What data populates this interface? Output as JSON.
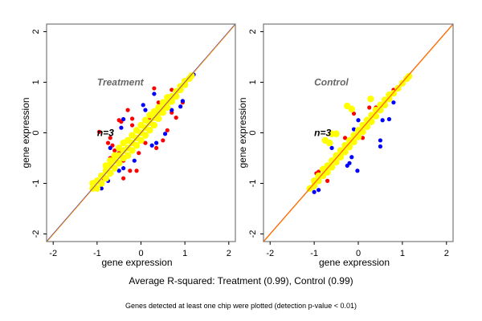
{
  "chart_data": [
    {
      "type": "scatter",
      "title": "Treatment",
      "annotation": "n=3",
      "xlabel": "gene expression",
      "ylabel": "gene expression",
      "xlim": [
        -2.15,
        2.15
      ],
      "ylim": [
        -2.15,
        2.15
      ],
      "xticks": [
        "-2",
        "-1",
        "0",
        "1",
        "2"
      ],
      "yticks": [
        "-2",
        "-1",
        "0",
        "1",
        "2"
      ],
      "grid": false,
      "reference_lines": [
        {
          "slope": 1,
          "intercept": 0,
          "color": "#0000ff"
        },
        {
          "slope": 1,
          "intercept": 0,
          "color": "#ff9900"
        }
      ],
      "series": [
        {
          "color": "#ff0000",
          "points": [
            [
              0.3,
              0.88
            ],
            [
              0.7,
              0.85
            ],
            [
              -0.3,
              0.45
            ],
            [
              -0.2,
              0.28
            ],
            [
              -0.5,
              0.25
            ],
            [
              -0.45,
              0.22
            ],
            [
              -0.95,
              0.02
            ],
            [
              -0.7,
              -0.1
            ],
            [
              -0.75,
              -0.2
            ],
            [
              -0.65,
              -0.25
            ],
            [
              -0.5,
              -0.4
            ],
            [
              -0.4,
              -0.55
            ],
            [
              -0.1,
              -0.75
            ],
            [
              -0.4,
              -0.9
            ],
            [
              -0.25,
              -0.75
            ],
            [
              0.35,
              -0.3
            ],
            [
              0.5,
              -0.15
            ],
            [
              0.6,
              0.05
            ],
            [
              0.8,
              0.3
            ],
            [
              0.95,
              0.6
            ],
            [
              0.7,
              0.4
            ],
            [
              -0.05,
              -0.4
            ],
            [
              0.1,
              -0.2
            ],
            [
              -1.05,
              -1.0
            ],
            [
              -0.85,
              -0.9
            ],
            [
              -0.6,
              -0.35
            ],
            [
              0.2,
              0.3
            ],
            [
              -0.2,
              0.15
            ],
            [
              0.4,
              0.6
            ],
            [
              -0.7,
              -0.5
            ]
          ]
        },
        {
          "color": "#0000ff",
          "points": [
            [
              0.3,
              0.77
            ],
            [
              0.05,
              0.55
            ],
            [
              0.1,
              0.45
            ],
            [
              -0.4,
              0.27
            ],
            [
              -0.45,
              0.1
            ],
            [
              -0.7,
              -0.3
            ],
            [
              -0.4,
              -0.7
            ],
            [
              -0.5,
              -0.75
            ],
            [
              -0.75,
              -0.95
            ],
            [
              0.25,
              -0.25
            ],
            [
              0.35,
              -0.2
            ],
            [
              0.55,
              -0.02
            ],
            [
              0.95,
              0.63
            ],
            [
              0.9,
              0.52
            ],
            [
              0.7,
              0.45
            ],
            [
              1.2,
              1.15
            ],
            [
              -0.15,
              -0.55
            ],
            [
              -0.9,
              -1.1
            ]
          ]
        },
        {
          "color": "#ffff00",
          "points": [
            [
              -1.1,
              -1.1
            ],
            [
              -1.1,
              -1.0
            ],
            [
              -1.0,
              -1.1
            ],
            [
              -1.0,
              -0.95
            ],
            [
              -0.9,
              -1.0
            ],
            [
              -0.9,
              -0.85
            ],
            [
              -0.8,
              -0.9
            ],
            [
              -0.8,
              -0.75
            ],
            [
              -0.8,
              -0.65
            ],
            [
              -0.7,
              -0.8
            ],
            [
              -0.7,
              -0.65
            ],
            [
              -0.7,
              -0.55
            ],
            [
              -0.6,
              -0.7
            ],
            [
              -0.6,
              -0.55
            ],
            [
              -0.6,
              -0.45
            ],
            [
              -0.5,
              -0.6
            ],
            [
              -0.5,
              -0.45
            ],
            [
              -0.5,
              -0.3
            ],
            [
              -0.4,
              -0.5
            ],
            [
              -0.4,
              -0.35
            ],
            [
              -0.4,
              -0.2
            ],
            [
              -0.3,
              -0.45
            ],
            [
              -0.3,
              -0.3
            ],
            [
              -0.3,
              -0.15
            ],
            [
              -0.2,
              -0.35
            ],
            [
              -0.2,
              -0.2
            ],
            [
              -0.2,
              -0.05
            ],
            [
              -0.1,
              -0.25
            ],
            [
              -0.1,
              -0.1
            ],
            [
              -0.1,
              0.05
            ],
            [
              0.0,
              -0.15
            ],
            [
              0.0,
              0.0
            ],
            [
              0.0,
              0.15
            ],
            [
              0.1,
              -0.05
            ],
            [
              0.1,
              0.1
            ],
            [
              0.1,
              0.25
            ],
            [
              0.2,
              0.05
            ],
            [
              0.2,
              0.2
            ],
            [
              0.2,
              0.35
            ],
            [
              0.3,
              0.15
            ],
            [
              0.3,
              0.3
            ],
            [
              0.3,
              0.42
            ],
            [
              0.4,
              0.28
            ],
            [
              0.4,
              0.4
            ],
            [
              0.4,
              0.5
            ],
            [
              0.5,
              0.4
            ],
            [
              0.5,
              0.5
            ],
            [
              0.5,
              0.6
            ],
            [
              0.6,
              0.5
            ],
            [
              0.6,
              0.6
            ],
            [
              0.6,
              0.7
            ],
            [
              0.7,
              0.62
            ],
            [
              0.7,
              0.72
            ],
            [
              0.8,
              0.72
            ],
            [
              0.8,
              0.82
            ],
            [
              0.9,
              0.85
            ],
            [
              0.9,
              0.92
            ],
            [
              1.0,
              0.95
            ],
            [
              1.0,
              1.02
            ],
            [
              1.1,
              1.07
            ],
            [
              1.15,
              1.13
            ]
          ]
        }
      ]
    },
    {
      "type": "scatter",
      "title": "Control",
      "annotation": "n=3",
      "xlabel": "gene expression",
      "ylabel": "gene expression",
      "xlim": [
        -2.15,
        2.15
      ],
      "ylim": [
        -2.15,
        2.15
      ],
      "xticks": [
        "-2",
        "-1",
        "0",
        "1",
        "2"
      ],
      "yticks": [
        "-2",
        "-1",
        "0",
        "1",
        "2"
      ],
      "grid": false,
      "reference_lines": [
        {
          "slope": 1,
          "intercept": 0,
          "color": "#ff0000"
        },
        {
          "slope": 1,
          "intercept": 0,
          "color": "#ff9900"
        }
      ],
      "series": [
        {
          "color": "#ff0000",
          "points": [
            [
              -0.9,
              -0.77
            ],
            [
              0.25,
              0.5
            ],
            [
              -0.1,
              0.38
            ],
            [
              -0.7,
              -0.95
            ],
            [
              0.4,
              0.5
            ],
            [
              0.1,
              -0.1
            ],
            [
              -0.5,
              -0.6
            ],
            [
              -0.95,
              -0.8
            ],
            [
              0.8,
              0.85
            ],
            [
              -0.3,
              -0.1
            ]
          ]
        },
        {
          "color": "#0000ff",
          "points": [
            [
              0.5,
              -0.15
            ],
            [
              0.5,
              -0.27
            ],
            [
              -0.15,
              -0.48
            ],
            [
              -0.2,
              -0.6
            ],
            [
              -0.25,
              -0.65
            ],
            [
              -0.02,
              -0.75
            ],
            [
              0.7,
              0.27
            ],
            [
              0.8,
              0.6
            ],
            [
              0.55,
              0.25
            ],
            [
              -1.0,
              -1.17
            ],
            [
              -0.6,
              -0.3
            ],
            [
              0.0,
              0.25
            ],
            [
              -0.9,
              -1.13
            ],
            [
              -0.1,
              0.07
            ]
          ]
        },
        {
          "color": "#ffff00",
          "points": [
            [
              -0.25,
              0.53
            ],
            [
              -0.15,
              0.47
            ],
            [
              -0.75,
              -0.15
            ],
            [
              -0.65,
              -0.2
            ],
            [
              -0.5,
              -0.02
            ],
            [
              -0.6,
              -0.02
            ],
            [
              0.28,
              0.67
            ],
            [
              -1.1,
              -1.1
            ],
            [
              -1.0,
              -1.05
            ],
            [
              -1.0,
              -0.95
            ],
            [
              -0.9,
              -0.95
            ],
            [
              -0.9,
              -0.85
            ],
            [
              -0.8,
              -0.85
            ],
            [
              -0.8,
              -0.72
            ],
            [
              -0.7,
              -0.78
            ],
            [
              -0.7,
              -0.65
            ],
            [
              -0.6,
              -0.68
            ],
            [
              -0.6,
              -0.55
            ],
            [
              -0.5,
              -0.58
            ],
            [
              -0.5,
              -0.45
            ],
            [
              -0.4,
              -0.48
            ],
            [
              -0.4,
              -0.35
            ],
            [
              -0.3,
              -0.38
            ],
            [
              -0.3,
              -0.25
            ],
            [
              -0.2,
              -0.28
            ],
            [
              -0.2,
              -0.15
            ],
            [
              -0.1,
              -0.18
            ],
            [
              -0.1,
              -0.05
            ],
            [
              0.0,
              -0.08
            ],
            [
              0.0,
              0.05
            ],
            [
              0.1,
              0.02
            ],
            [
              0.1,
              0.15
            ],
            [
              0.2,
              0.12
            ],
            [
              0.2,
              0.25
            ],
            [
              0.3,
              0.22
            ],
            [
              0.3,
              0.35
            ],
            [
              0.4,
              0.33
            ],
            [
              0.4,
              0.45
            ],
            [
              0.5,
              0.45
            ],
            [
              0.5,
              0.55
            ],
            [
              0.6,
              0.55
            ],
            [
              0.6,
              0.65
            ],
            [
              0.7,
              0.67
            ],
            [
              0.7,
              0.75
            ],
            [
              0.8,
              0.78
            ],
            [
              0.9,
              0.88
            ],
            [
              1.0,
              0.98
            ],
            [
              1.1,
              1.07
            ],
            [
              1.15,
              1.12
            ]
          ]
        }
      ]
    }
  ],
  "caption": "Average R-squared: Treatment (0.99), Control (0.99)",
  "footnote": "Genes detected at least one chip were plotted (detection p-value < 0.01)"
}
